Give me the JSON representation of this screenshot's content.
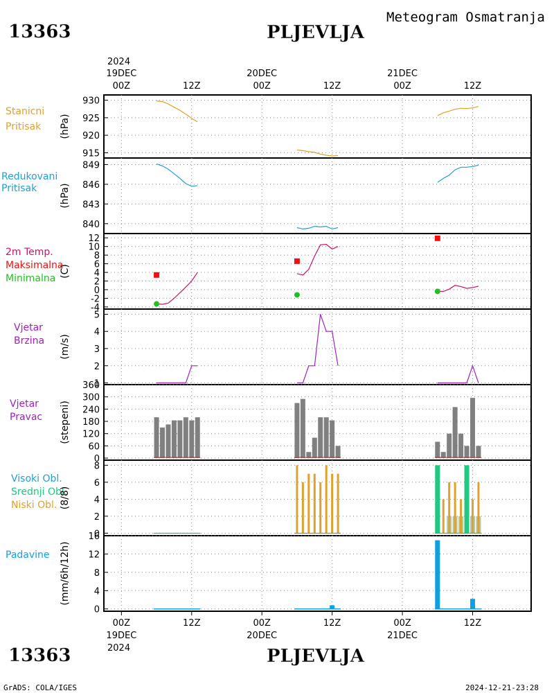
{
  "header": {
    "station_id": "13363",
    "station_name": "PLJEVLJA",
    "product_title": "Meteogram Osmatranja"
  },
  "footer": {
    "station_id": "13363",
    "station_name": "PLJEVLJA",
    "credit": "GrADS: COLA/IGES",
    "timestamp": "2024-12-21-23:28"
  },
  "time_axis": {
    "top_year": "2024",
    "bottom_year": "2024",
    "hour_labels": [
      "00Z",
      "12Z",
      "00Z",
      "12Z",
      "00Z",
      "12Z"
    ],
    "hour_values": [
      0,
      12,
      24,
      36,
      48,
      60
    ],
    "date_labels": [
      {
        "text": "19DEC",
        "h": 0
      },
      {
        "text": "20DEC",
        "h": 24
      },
      {
        "text": "21DEC",
        "h": 48
      }
    ],
    "xlim_hours": [
      -3,
      70
    ]
  },
  "colors": {
    "pressure": "#e0a030",
    "reduced_pressure": "#20a0d0",
    "temp_label": "#d0106a",
    "max": "#ee1010",
    "min": "#20c020",
    "wind": "#a020c0",
    "direction_bar": "#808080",
    "cloud_high": "#20c880",
    "cloud_low": "#e0a030",
    "precip": "#10a0e0"
  },
  "chart_data": [
    {
      "type": "line",
      "panel": "station-pressure",
      "labels": [
        "Stanicni",
        "Pritisak"
      ],
      "ylabel": "(hPa)",
      "ylim": [
        913.5,
        931.5
      ],
      "yticks": [
        930,
        925,
        920,
        915
      ],
      "series": [
        {
          "x": [
            6,
            7,
            8,
            9,
            10,
            11,
            12,
            13
          ],
          "y": [
            929.8,
            929.6,
            928.9,
            928.0,
            927.1,
            926.0,
            924.8,
            923.8
          ]
        },
        {
          "x": [
            30,
            31,
            32,
            33,
            34,
            35,
            36,
            37
          ],
          "y": [
            915.8,
            915.6,
            915.3,
            915.1,
            914.6,
            914.3,
            914.1,
            914.2
          ]
        },
        {
          "x": [
            54,
            55,
            56,
            57,
            58,
            59,
            60,
            61
          ],
          "y": [
            925.6,
            926.4,
            926.9,
            927.4,
            927.7,
            927.6,
            927.8,
            928.2
          ]
        }
      ]
    },
    {
      "type": "line",
      "panel": "reduced-pressure",
      "labels": [
        "Redukovani",
        "Pritisak"
      ],
      "ylabel": "(hPa)",
      "ylim": [
        838.5,
        850.0
      ],
      "yticks": [
        849,
        846,
        843,
        840
      ],
      "series": [
        {
          "x": [
            6,
            7,
            8,
            9,
            10,
            11,
            12,
            13
          ],
          "y": [
            849.1,
            848.8,
            848.3,
            847.6,
            846.9,
            846.1,
            845.7,
            845.8
          ]
        },
        {
          "x": [
            30,
            31,
            32,
            33,
            34,
            35,
            36,
            37
          ],
          "y": [
            839.4,
            839.2,
            839.3,
            839.6,
            839.5,
            839.6,
            839.2,
            839.4
          ]
        },
        {
          "x": [
            54,
            55,
            56,
            57,
            58,
            59,
            60,
            61
          ],
          "y": [
            846.3,
            846.9,
            847.4,
            848.2,
            848.6,
            848.6,
            848.7,
            848.9
          ]
        }
      ]
    },
    {
      "type": "line",
      "panel": "temperature",
      "labels": [
        "2m Temp.",
        "Maksimalna",
        "Minimalna"
      ],
      "ylabel": "(C)",
      "ylim": [
        -4.5,
        13.0
      ],
      "yticks": [
        12,
        10,
        8,
        6,
        4,
        2,
        0,
        -2,
        -4
      ],
      "series": [
        {
          "x": [
            6,
            7,
            8,
            9,
            10,
            11,
            12,
            13
          ],
          "y": [
            -3.3,
            -3.4,
            -3.1,
            -2.0,
            -0.7,
            0.6,
            2.0,
            4.0
          ]
        },
        {
          "x": [
            30,
            31,
            32,
            33,
            34,
            35,
            36,
            37
          ],
          "y": [
            3.7,
            3.4,
            4.7,
            7.8,
            10.4,
            10.5,
            9.4,
            10.0
          ]
        },
        {
          "x": [
            54,
            55,
            56,
            57,
            58,
            59,
            60,
            61
          ],
          "y": [
            -0.4,
            -0.4,
            0.1,
            1.0,
            0.7,
            0.3,
            0.5,
            0.8
          ]
        }
      ],
      "maxima": [
        {
          "x": 6,
          "y": 3.4
        },
        {
          "x": 30,
          "y": 6.6
        },
        {
          "x": 54,
          "y": 11.9
        }
      ],
      "minima": [
        {
          "x": 6,
          "y": -3.3
        },
        {
          "x": 30,
          "y": -1.2
        },
        {
          "x": 54,
          "y": -0.4
        }
      ]
    },
    {
      "type": "line",
      "panel": "wind-speed",
      "labels": [
        "Vjetar",
        "Brzina"
      ],
      "ylabel": "(m/s)",
      "ylim": [
        0.9,
        5.3
      ],
      "yticks": [
        5,
        4,
        3,
        2,
        1
      ],
      "series": [
        {
          "x": [
            6,
            7,
            8,
            9,
            10,
            11,
            12,
            13
          ],
          "y": [
            1,
            1,
            1,
            1,
            1,
            1,
            2,
            2
          ]
        },
        {
          "x": [
            30,
            31,
            32,
            33,
            34,
            35,
            36,
            37
          ],
          "y": [
            1,
            1,
            2,
            2,
            5,
            4,
            4,
            2
          ]
        },
        {
          "x": [
            54,
            55,
            56,
            57,
            58,
            59,
            60,
            61
          ],
          "y": [
            1,
            1,
            1,
            1,
            1,
            1,
            2,
            1
          ]
        }
      ]
    },
    {
      "type": "bar",
      "panel": "wind-direction",
      "labels": [
        "Vjetar",
        "Pravac"
      ],
      "ylabel": "(stepeni)",
      "ylim": [
        -10,
        360
      ],
      "yticks": [
        360,
        300,
        240,
        180,
        120,
        60,
        0
      ],
      "bars": [
        {
          "x": 6,
          "y": 200
        },
        {
          "x": 7,
          "y": 150
        },
        {
          "x": 8,
          "y": 165
        },
        {
          "x": 9,
          "y": 185
        },
        {
          "x": 10,
          "y": 185
        },
        {
          "x": 11,
          "y": 200
        },
        {
          "x": 12,
          "y": 185
        },
        {
          "x": 13,
          "y": 200
        },
        {
          "x": 30,
          "y": 270
        },
        {
          "x": 31,
          "y": 290
        },
        {
          "x": 32,
          "y": 30
        },
        {
          "x": 33,
          "y": 100
        },
        {
          "x": 34,
          "y": 200
        },
        {
          "x": 35,
          "y": 200
        },
        {
          "x": 36,
          "y": 185
        },
        {
          "x": 37,
          "y": 60
        },
        {
          "x": 54,
          "y": 80
        },
        {
          "x": 55,
          "y": 30
        },
        {
          "x": 56,
          "y": 120
        },
        {
          "x": 57,
          "y": 250
        },
        {
          "x": 58,
          "y": 120
        },
        {
          "x": 59,
          "y": 60
        },
        {
          "x": 60,
          "y": 295
        },
        {
          "x": 61,
          "y": 60
        }
      ]
    },
    {
      "type": "bar",
      "panel": "cloud-cover",
      "labels": [
        "Visoki Obl.",
        "Srednji Obl.",
        "Niski Obl."
      ],
      "ylabel": "(8/8)",
      "ylim": [
        -0.3,
        8.6
      ],
      "yticks": [
        8,
        6,
        4,
        2,
        0
      ],
      "high": [
        {
          "x": 54,
          "y": 8
        },
        {
          "x": 59,
          "y": 8
        }
      ],
      "low": [
        {
          "x": 30,
          "y": 8
        },
        {
          "x": 31,
          "y": 6
        },
        {
          "x": 32,
          "y": 7
        },
        {
          "x": 33,
          "y": 7
        },
        {
          "x": 34,
          "y": 6
        },
        {
          "x": 35,
          "y": 8
        },
        {
          "x": 36,
          "y": 7
        },
        {
          "x": 37,
          "y": 7
        },
        {
          "x": 55,
          "y": 4
        },
        {
          "x": 56,
          "y": 6
        },
        {
          "x": 57,
          "y": 6
        },
        {
          "x": 58,
          "y": 4
        },
        {
          "x": 60,
          "y": 4
        },
        {
          "x": 61,
          "y": 6
        }
      ],
      "middle_fill": [
        {
          "x": 56,
          "y": 2
        },
        {
          "x": 57,
          "y": 2
        },
        {
          "x": 58,
          "y": 2
        },
        {
          "x": 60,
          "y": 2
        },
        {
          "x": 61,
          "y": 2
        }
      ]
    },
    {
      "type": "bar",
      "panel": "precipitation",
      "labels": [
        "Padavine"
      ],
      "ylabel": "(mm/6h/12h)",
      "ylim": [
        -0.5,
        16
      ],
      "yticks": [
        16,
        12,
        8,
        4,
        0
      ],
      "bars": [
        {
          "x": 36,
          "y": 0.8
        },
        {
          "x": 54,
          "y": 15.0
        },
        {
          "x": 60,
          "y": 2.2
        }
      ],
      "trace_ranges": [
        [
          6,
          13
        ],
        [
          30,
          37
        ],
        [
          54,
          61
        ]
      ]
    }
  ]
}
